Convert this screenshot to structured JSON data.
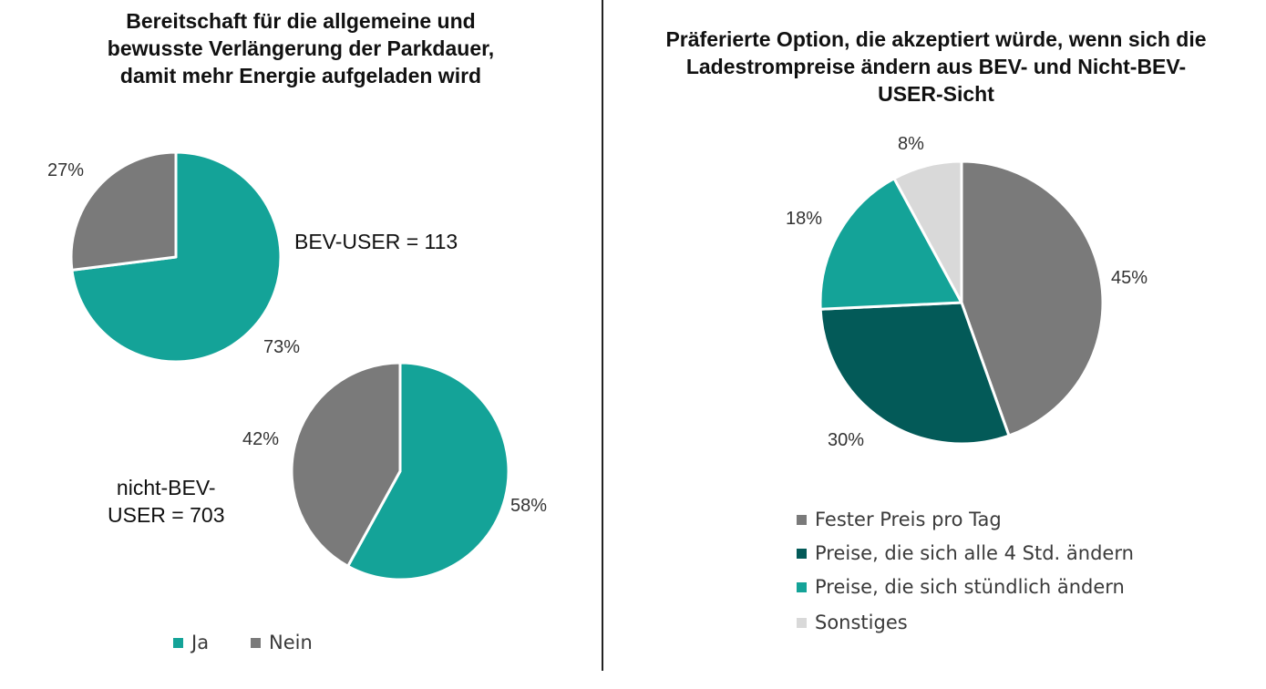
{
  "colors": {
    "teal": "#14a398",
    "gray": "#7a7a7a",
    "dark_teal": "#035a58",
    "light_gray": "#d9d9d9"
  },
  "left": {
    "title": "Bereitschaft für die allgemeine und\nbewusste Verlängerung der Parkdauer,\ndamit  mehr Energie aufgeladen wird",
    "bev_annotation": "BEV-USER = 113",
    "non_bev_annotation": "nicht-BEV-\nUSER = 703",
    "legend": [
      {
        "label": "Ja",
        "color": "#14a398"
      },
      {
        "label": "Nein",
        "color": "#7a7a7a"
      }
    ]
  },
  "right": {
    "title": "Präferierte Option, die akzeptiert würde, wenn sich die\nLadestrompreise ändern aus BEV- und Nicht-BEV-\nUSER-Sicht",
    "legend": [
      {
        "label": "Fester Preis pro Tag",
        "color": "#7a7a7a"
      },
      {
        "label": "Preise, die sich alle 4 Std. ändern",
        "color": "#035a58"
      },
      {
        "label": "Preise, die sich stündlich ändern",
        "color": "#14a398"
      },
      {
        "label": "Sonstiges",
        "color": "#d9d9d9"
      }
    ]
  },
  "chart_data": [
    {
      "type": "pie",
      "title": "BEV-USER = 113",
      "categories": [
        "Ja",
        "Nein"
      ],
      "values": [
        73,
        27
      ],
      "labels": [
        "73%",
        "27%"
      ],
      "colors": [
        "#14a398",
        "#7a7a7a"
      ]
    },
    {
      "type": "pie",
      "title": "nicht-BEV-USER = 703",
      "categories": [
        "Ja",
        "Nein"
      ],
      "values": [
        58,
        42
      ],
      "labels": [
        "58%",
        "42%"
      ],
      "colors": [
        "#14a398",
        "#7a7a7a"
      ]
    },
    {
      "type": "pie",
      "title": "Präferierte Option, die akzeptiert würde, wenn sich die Ladestrompreise ändern aus BEV- und Nicht-BEV-USER-Sicht",
      "categories": [
        "Fester Preis pro Tag",
        "Preise, die sich alle 4 Std. ändern",
        "Preise, die sich stündlich ändern",
        "Sonstiges"
      ],
      "values": [
        45,
        30,
        18,
        8
      ],
      "labels": [
        "45%",
        "30%",
        "18%",
        "8%"
      ],
      "colors": [
        "#7a7a7a",
        "#035a58",
        "#14a398",
        "#d9d9d9"
      ]
    }
  ]
}
